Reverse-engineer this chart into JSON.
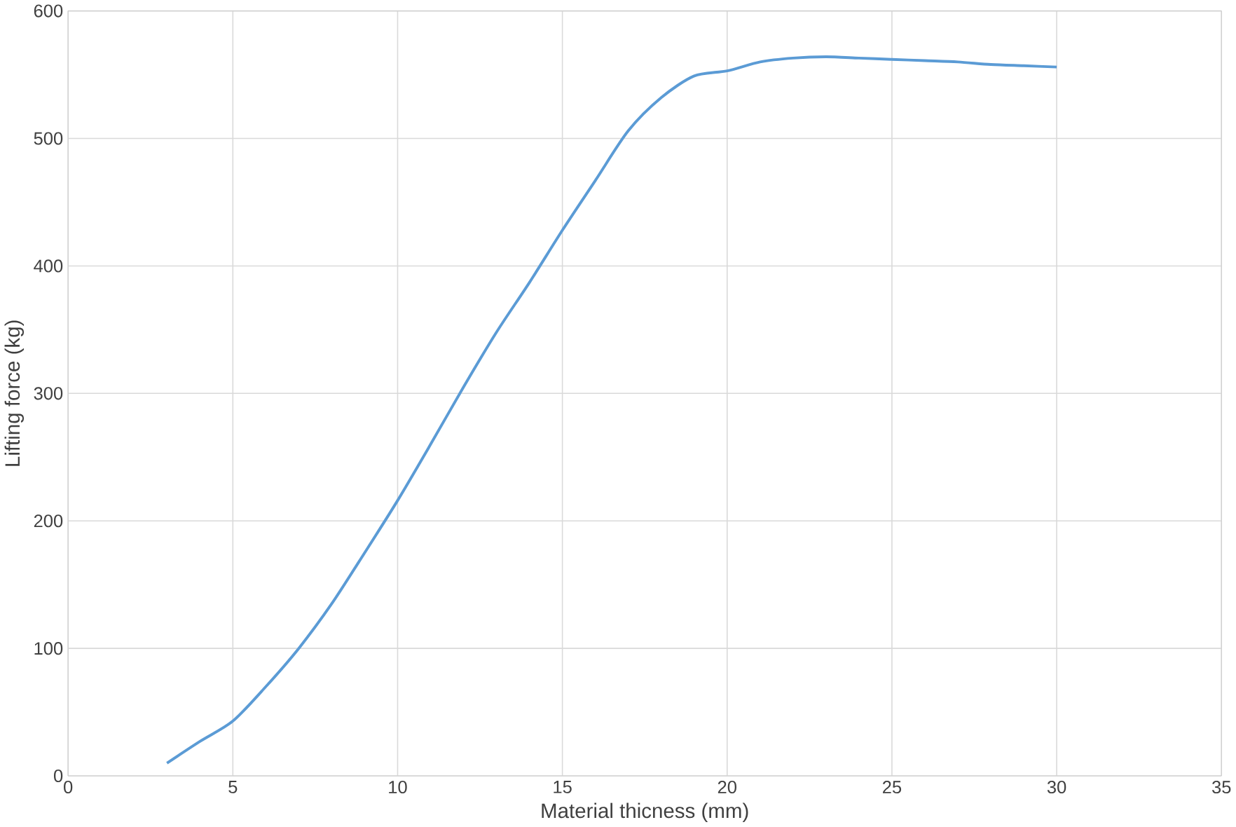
{
  "chart_data": {
    "type": "line",
    "xlabel": "Material thicness (mm)",
    "ylabel": "Lifting force (kg)",
    "xlim": [
      0,
      35
    ],
    "xticks": [
      0,
      5,
      10,
      15,
      20,
      25,
      30,
      35
    ],
    "ylim": [
      0,
      600
    ],
    "yticks": [
      0,
      100,
      200,
      300,
      400,
      500,
      600
    ],
    "grid": true,
    "marker": "none",
    "line_style": "solid",
    "series": [
      {
        "color": "#5b9bd5",
        "x": [
          3,
          4,
          5,
          6,
          7,
          8,
          9,
          10,
          11,
          12,
          13,
          14,
          15,
          16,
          17,
          18,
          19,
          20,
          21,
          22,
          23,
          24,
          25,
          26,
          27,
          28,
          29,
          30
        ],
        "values": [
          10,
          27,
          43,
          70,
          100,
          135,
          175,
          216,
          260,
          305,
          348,
          387,
          428,
          467,
          506,
          532,
          549,
          553,
          560,
          563,
          564,
          563,
          562,
          561,
          560,
          558,
          557,
          556
        ]
      }
    ]
  }
}
